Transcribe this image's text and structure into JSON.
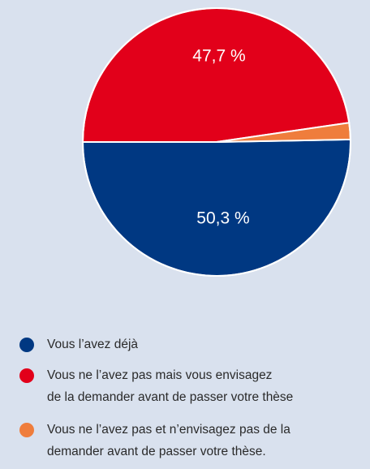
{
  "chart_data": {
    "type": "pie",
    "categories": [
      [
        "Vous l’avez déjà"
      ],
      [
        "Vous ne l’avez pas mais vous envisagez",
        "de la demander avant de passer votre thèse"
      ],
      [
        "Vous ne l’avez pas et n’envisagez pas de la",
        "demander avant de passer votre thèse."
      ]
    ],
    "values": [
      50.3,
      47.7,
      2
    ],
    "value_labels": [
      "50,3 %",
      "47,7 %",
      null
    ],
    "colors": [
      "#003882",
      "#e2001a",
      "#ef7d3c"
    ]
  }
}
